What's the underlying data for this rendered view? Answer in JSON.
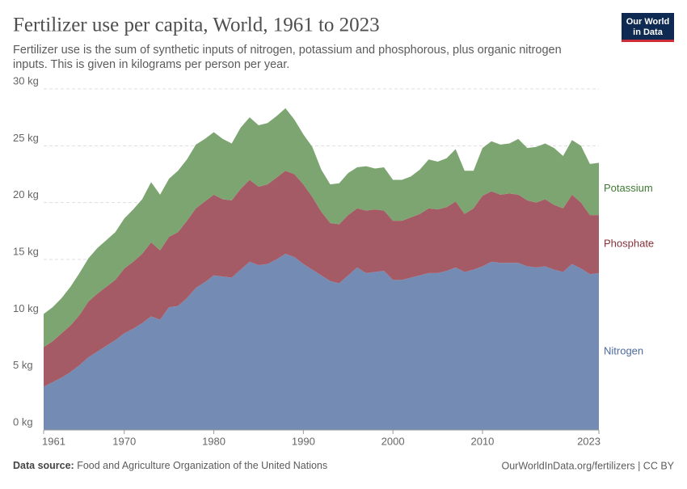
{
  "header": {
    "title": "Fertilizer use per capita, World, 1961 to 2023",
    "subtitle": [
      "Fertilizer use is the sum of synthetic inputs of nitrogen, potassium and phosphorous, plus organic nitrogen",
      "inputs. This is given in kilograms per person per year."
    ],
    "logo": [
      "Our World",
      "in Data"
    ]
  },
  "chart_data": {
    "type": "stacked-area",
    "x": [
      1961,
      1962,
      1963,
      1964,
      1965,
      1966,
      1967,
      1968,
      1969,
      1970,
      1971,
      1972,
      1973,
      1974,
      1975,
      1976,
      1977,
      1978,
      1979,
      1980,
      1981,
      1982,
      1983,
      1984,
      1985,
      1986,
      1987,
      1988,
      1989,
      1990,
      1991,
      1992,
      1993,
      1994,
      1995,
      1996,
      1997,
      1998,
      1999,
      2000,
      2001,
      2002,
      2003,
      2004,
      2005,
      2006,
      2007,
      2008,
      2009,
      2010,
      2011,
      2012,
      2013,
      2014,
      2015,
      2016,
      2017,
      2018,
      2019,
      2020,
      2021,
      2022,
      2023
    ],
    "series": [
      {
        "name": "Nitrogen",
        "color": "#6d86b0",
        "label_color": "#4d6a9c",
        "values": [
          3.8,
          4.2,
          4.6,
          5.1,
          5.7,
          6.4,
          6.9,
          7.4,
          7.9,
          8.5,
          8.9,
          9.4,
          10.0,
          9.7,
          10.8,
          10.9,
          11.6,
          12.5,
          13.0,
          13.6,
          13.5,
          13.4,
          14.1,
          14.8,
          14.5,
          14.6,
          15.0,
          15.5,
          15.2,
          14.6,
          14.1,
          13.6,
          13.1,
          12.9,
          13.6,
          14.3,
          13.8,
          13.9,
          14.0,
          13.2,
          13.2,
          13.4,
          13.6,
          13.8,
          13.8,
          14.0,
          14.3,
          13.9,
          14.1,
          14.4,
          14.8,
          14.7,
          14.7,
          14.7,
          14.4,
          14.3,
          14.4,
          14.1,
          13.9,
          14.6,
          14.2,
          13.7,
          13.8
        ]
      },
      {
        "name": "Phosphate",
        "color": "#a0525d",
        "label_color": "#883039",
        "values": [
          3.5,
          3.6,
          3.9,
          4.1,
          4.4,
          4.9,
          5.1,
          5.2,
          5.3,
          5.7,
          5.9,
          6.1,
          6.5,
          6.1,
          6.2,
          6.5,
          6.8,
          7.0,
          7.1,
          7.1,
          6.8,
          6.8,
          7.1,
          7.2,
          6.9,
          7.0,
          7.2,
          7.3,
          7.3,
          7.0,
          6.4,
          5.6,
          5.1,
          5.2,
          5.3,
          5.2,
          5.5,
          5.5,
          5.3,
          5.2,
          5.2,
          5.3,
          5.4,
          5.7,
          5.6,
          5.6,
          5.8,
          5.1,
          5.4,
          6.2,
          6.2,
          6.0,
          6.1,
          6.0,
          5.8,
          5.7,
          5.9,
          5.7,
          5.6,
          6.1,
          5.8,
          5.2,
          5.1
        ]
      },
      {
        "name": "Potassium",
        "color": "#76a06a",
        "label_color": "#3f7a32",
        "values": [
          2.9,
          3.0,
          3.1,
          3.4,
          3.7,
          3.8,
          4.0,
          4.1,
          4.2,
          4.4,
          4.6,
          4.8,
          5.3,
          4.9,
          5.1,
          5.4,
          5.4,
          5.6,
          5.5,
          5.5,
          5.3,
          5.0,
          5.4,
          5.5,
          5.4,
          5.4,
          5.4,
          5.5,
          4.8,
          4.4,
          4.4,
          3.7,
          3.4,
          3.6,
          3.7,
          3.6,
          3.9,
          3.6,
          3.8,
          3.6,
          3.6,
          3.6,
          3.9,
          4.3,
          4.2,
          4.3,
          4.6,
          3.8,
          3.3,
          4.2,
          4.4,
          4.4,
          4.4,
          4.9,
          4.6,
          4.9,
          4.9,
          5.0,
          4.6,
          4.8,
          5.0,
          4.5,
          4.6
        ]
      }
    ],
    "xlim": [
      1961,
      2023
    ],
    "xticks": [
      1961,
      1970,
      1980,
      1990,
      2000,
      2010,
      2023
    ],
    "ylim": [
      0,
      30
    ],
    "yticks": [
      {
        "value": 0,
        "label": "0 kg"
      },
      {
        "value": 5,
        "label": "5 kg"
      },
      {
        "value": 10,
        "label": "10 kg"
      },
      {
        "value": 15,
        "label": "15 kg"
      },
      {
        "value": 20,
        "label": "20 kg"
      },
      {
        "value": 25,
        "label": "25 kg"
      },
      {
        "value": 30,
        "label": "30 kg"
      }
    ],
    "grid": true
  },
  "footer": {
    "source_label": "Data source:",
    "source": "Food and Agriculture Organization of the United Nations",
    "url": "OurWorldInData.org/fertilizers | CC BY"
  }
}
